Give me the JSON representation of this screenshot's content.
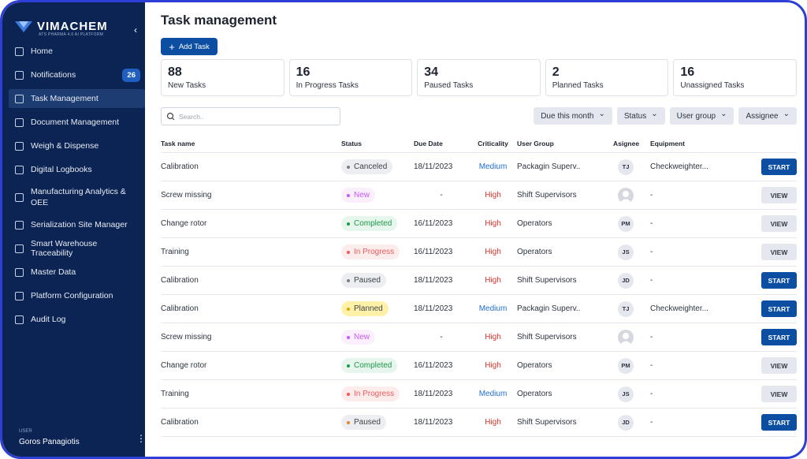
{
  "sidebar": {
    "logo": "VIMACHEM",
    "tagline": "ATS PHARMA 4.0 AI PLATFORM",
    "nav": [
      {
        "label": "Home"
      },
      {
        "label": "Notifications",
        "badge": 26
      },
      {
        "label": "Task Management",
        "active": true
      },
      {
        "label": "Document Management"
      },
      {
        "label": "Weigh & Dispense"
      },
      {
        "label": "Digital Logbooks"
      },
      {
        "label": "Manufacturing Analytics & OEE"
      },
      {
        "label": "Serialization Site Manager"
      },
      {
        "label": "Smart Warehouse Traceability"
      },
      {
        "label": "Master Data"
      },
      {
        "label": "Platform Configuration"
      },
      {
        "label": "Audit Log"
      }
    ],
    "user_label": "USER",
    "user_name": "Goros Panagiotis"
  },
  "main": {
    "title": "Task management",
    "add_button": "Add Task",
    "stats": [
      {
        "value": 88,
        "label": "New Tasks"
      },
      {
        "value": 16,
        "label": "In Progress Tasks"
      },
      {
        "value": 34,
        "label": "Paused Tasks"
      },
      {
        "value": 2,
        "label": "Planned Tasks"
      },
      {
        "value": 16,
        "label": "Unassigned Tasks"
      }
    ],
    "search_placeholder": "Search..",
    "filters": [
      "Due this month",
      "Status",
      "User group",
      "Assignee"
    ],
    "table": {
      "columns": [
        "Task name",
        "Status",
        "Due Date",
        "Criticality",
        "User Group",
        "Asignee",
        "Equipment"
      ],
      "rows": [
        {
          "name": "Calibration",
          "status": "Canceled",
          "status_color": "#7a7f87",
          "status_text_color": "#3d434c",
          "status_bg": "#eceef1",
          "due": "18/11/2023",
          "criticality": "Medium",
          "criticality_color": "#1f6fd1",
          "group": "Packagin Superv..",
          "assignee": "TJ",
          "equipment": "Checkweighter...",
          "action": "START",
          "action_bg": "#0b4ea2",
          "action_color": "#ffffff"
        },
        {
          "name": "Screw missing",
          "status": "New",
          "status_color": "#c15ef0",
          "status_text_color": "#c15ef0",
          "status_bg": "#fbeefd",
          "due": "-",
          "criticality": "High",
          "criticality_color": "#d9342b",
          "group": "Shift Supervisors",
          "assignee": null,
          "equipment": "-",
          "action": "VIEW",
          "action_bg": "#e4e8ee",
          "action_color": "#333a45"
        },
        {
          "name": "Change rotor",
          "status": "Completed",
          "status_color": "#1d9a4a",
          "status_text_color": "#1d9a4a",
          "status_bg": "#e7f6ec",
          "due": "16/11/2023",
          "criticality": "High",
          "criticality_color": "#d9342b",
          "group": "Operators",
          "assignee": "PM",
          "equipment": "-",
          "action": "VIEW",
          "action_bg": "#e4e8ee",
          "action_color": "#333a45"
        },
        {
          "name": "Training",
          "status": "In Progress",
          "status_color": "#ef5a5a",
          "status_text_color": "#ef5a5a",
          "status_bg": "#fdecec",
          "due": "16/11/2023",
          "criticality": "High",
          "criticality_color": "#d9342b",
          "group": "Operators",
          "assignee": "JS",
          "equipment": "-",
          "action": "VIEW",
          "action_bg": "#e4e8ee",
          "action_color": "#333a45"
        },
        {
          "name": "Calibration",
          "status": "Paused",
          "status_color": "#7a7f87",
          "status_text_color": "#3d434c",
          "status_bg": "#eceef1",
          "due": "18/11/2023",
          "criticality": "High",
          "criticality_color": "#d9342b",
          "group": "Shift Supervisors",
          "assignee": "JD",
          "equipment": "-",
          "action": "START",
          "action_bg": "#0b4ea2",
          "action_color": "#ffffff"
        },
        {
          "name": "Calibration",
          "status": "Planned",
          "status_color": "#d9a400",
          "status_text_color": "#3d434c",
          "status_bg": "#fff1a8",
          "due": "18/11/2023",
          "criticality": "Medium",
          "criticality_color": "#1f6fd1",
          "group": "Packagin Superv..",
          "assignee": "TJ",
          "equipment": "Checkweighter...",
          "action": "START",
          "action_bg": "#0b4ea2",
          "action_color": "#ffffff"
        },
        {
          "name": "Screw missing",
          "status": "New",
          "status_color": "#c15ef0",
          "status_text_color": "#c15ef0",
          "status_bg": "#fbeefd",
          "due": "-",
          "criticality": "High",
          "criticality_color": "#d9342b",
          "group": "Shift Supervisors",
          "assignee": null,
          "equipment": "-",
          "action": "START",
          "action_bg": "#0b4ea2",
          "action_color": "#ffffff"
        },
        {
          "name": "Change rotor",
          "status": "Completed",
          "status_color": "#1d9a4a",
          "status_text_color": "#1d9a4a",
          "status_bg": "#e7f6ec",
          "due": "16/11/2023",
          "criticality": "High",
          "criticality_color": "#d9342b",
          "group": "Operators",
          "assignee": "PM",
          "equipment": "-",
          "action": "VIEW",
          "action_bg": "#e4e8ee",
          "action_color": "#333a45"
        },
        {
          "name": "Training",
          "status": "In Progress",
          "status_color": "#ef5a5a",
          "status_text_color": "#ef5a5a",
          "status_bg": "#fdecec",
          "due": "18/11/2023",
          "criticality": "Medium",
          "criticality_color": "#1f6fd1",
          "group": "Operators",
          "assignee": "JS",
          "equipment": "-",
          "action": "VIEW",
          "action_bg": "#e4e8ee",
          "action_color": "#333a45"
        },
        {
          "name": "Calibration",
          "status": "Paused",
          "status_color": "#e58a2b",
          "status_text_color": "#3d434c",
          "status_bg": "#eceef1",
          "due": "18/11/2023",
          "criticality": "High",
          "criticality_color": "#d9342b",
          "group": "Shift Supervisors",
          "assignee": "JD",
          "equipment": "-",
          "action": "START",
          "action_bg": "#0b4ea2",
          "action_color": "#ffffff"
        }
      ]
    }
  }
}
